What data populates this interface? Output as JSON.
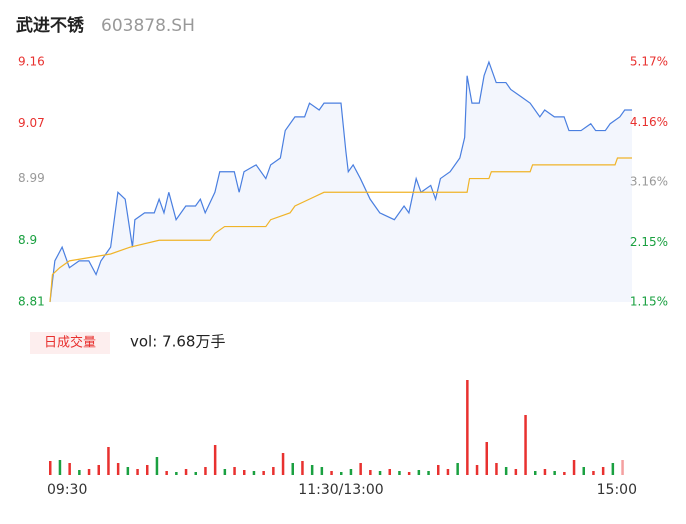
{
  "chart_data": [
    {
      "type": "line",
      "title": "武进不锈",
      "subtitle": "603878.SH",
      "xlim": [
        0,
        240
      ],
      "ylim": [
        8.81,
        9.16
      ],
      "yticks": [
        8.81,
        8.9,
        8.99,
        9.07,
        9.16
      ],
      "y2lim": [
        1.15,
        5.17
      ],
      "y2ticks": [
        {
          "value": 1.15,
          "label": "1.15%"
        },
        {
          "value": 2.15,
          "label": "2.15%"
        },
        {
          "value": 3.16,
          "label": "3.16%"
        },
        {
          "value": 4.16,
          "label": "4.16%"
        },
        {
          "value": 5.17,
          "label": "5.17%"
        }
      ],
      "series": [
        {
          "color": "#4a7fe0",
          "fill": "#f3f6fd",
          "x": [
            0,
            2,
            5,
            8,
            12,
            16,
            19,
            21,
            25,
            28,
            31,
            34,
            35,
            39,
            43,
            45,
            47,
            49,
            52,
            56,
            60,
            62,
            64,
            68,
            70,
            76,
            78,
            80,
            85,
            89,
            91,
            95,
            97,
            101,
            105,
            107,
            111,
            113,
            120,
            122,
            123,
            125,
            128,
            132,
            136,
            142,
            146,
            148,
            151,
            153,
            157,
            159,
            161,
            165,
            169,
            171,
            172,
            174,
            177,
            179,
            181,
            184,
            188,
            190,
            194,
            198,
            202,
            204,
            208,
            212,
            214,
            219,
            223,
            225,
            229,
            231,
            235,
            237,
            240
          ],
          "values": [
            8.81,
            8.87,
            8.89,
            8.86,
            8.87,
            8.87,
            8.85,
            8.87,
            8.89,
            8.97,
            8.96,
            8.89,
            8.93,
            8.94,
            8.94,
            8.96,
            8.94,
            8.97,
            8.93,
            8.95,
            8.95,
            8.96,
            8.94,
            8.97,
            9.0,
            9.0,
            8.97,
            9.0,
            9.01,
            8.99,
            9.01,
            9.02,
            9.06,
            9.08,
            9.08,
            9.1,
            9.09,
            9.1,
            9.1,
            9.03,
            9.0,
            9.01,
            8.99,
            8.96,
            8.94,
            8.93,
            8.95,
            8.94,
            8.99,
            8.97,
            8.98,
            8.96,
            8.99,
            9.0,
            9.02,
            9.05,
            9.14,
            9.1,
            9.1,
            9.14,
            9.16,
            9.13,
            9.13,
            9.12,
            9.11,
            9.1,
            9.08,
            9.09,
            9.08,
            9.08,
            9.06,
            9.06,
            9.07,
            9.06,
            9.06,
            9.07,
            9.08,
            9.09,
            9.09
          ]
        },
        {
          "color": "#f0b429",
          "x": [
            0,
            1,
            4,
            8,
            25,
            33,
            45,
            66,
            68,
            72,
            89,
            91,
            99,
            101,
            107,
            113,
            115,
            172,
            173,
            181,
            182,
            198,
            199,
            233,
            234,
            240
          ],
          "values": [
            8.81,
            8.85,
            8.86,
            8.87,
            8.88,
            8.89,
            8.9,
            8.9,
            8.91,
            8.92,
            8.92,
            8.93,
            8.94,
            8.95,
            8.96,
            8.97,
            8.97,
            8.97,
            8.99,
            8.99,
            9.0,
            9.0,
            9.01,
            9.01,
            9.02,
            9.02
          ]
        }
      ]
    },
    {
      "type": "bar",
      "title": "日成交量",
      "annotation": "vol: 7.68万手",
      "xlim": [
        0,
        240
      ],
      "xticks": [
        {
          "value": 0,
          "label": "09:30"
        },
        {
          "value": 120,
          "label": "11:30/13:00"
        },
        {
          "value": 240,
          "label": "15:00"
        }
      ],
      "x": [
        0,
        4,
        8,
        12,
        16,
        20,
        24,
        28,
        32,
        36,
        40,
        44,
        48,
        52,
        56,
        60,
        64,
        68,
        72,
        76,
        80,
        84,
        88,
        92,
        96,
        100,
        104,
        108,
        112,
        116,
        120,
        124,
        128,
        132,
        136,
        140,
        144,
        148,
        152,
        156,
        160,
        164,
        168,
        172,
        176,
        180,
        184,
        188,
        192,
        196,
        200,
        204,
        208,
        212,
        216,
        220,
        224,
        228,
        232,
        236
      ],
      "values": [
        14,
        15,
        12,
        5,
        6,
        10,
        28,
        12,
        8,
        6,
        10,
        18,
        4,
        3,
        6,
        3,
        8,
        30,
        6,
        8,
        5,
        4,
        4,
        8,
        22,
        12,
        14,
        10,
        8,
        4,
        3,
        6,
        12,
        5,
        4,
        6,
        4,
        3,
        5,
        4,
        10,
        6,
        12,
        95,
        10,
        33,
        12,
        8,
        6,
        60,
        4,
        6,
        4,
        3,
        15,
        8,
        4,
        8,
        12,
        15
      ],
      "colors": [
        "#e8312f",
        "#1aa040",
        "#e8312f",
        "#1aa040",
        "#e8312f",
        "#e8312f",
        "#e8312f",
        "#e8312f",
        "#1aa040",
        "#e8312f",
        "#e8312f",
        "#1aa040",
        "#e8312f",
        "#1aa040",
        "#e8312f",
        "#1aa040",
        "#e8312f",
        "#e8312f",
        "#1aa040",
        "#e8312f",
        "#e8312f",
        "#1aa040",
        "#e8312f",
        "#e8312f",
        "#e8312f",
        "#1aa040",
        "#e8312f",
        "#1aa040",
        "#1aa040",
        "#e8312f",
        "#1aa040",
        "#1aa040",
        "#e8312f",
        "#e8312f",
        "#1aa040",
        "#e8312f",
        "#1aa040",
        "#e8312f",
        "#1aa040",
        "#1aa040",
        "#e8312f",
        "#e8312f",
        "#1aa040",
        "#e8312f",
        "#e8312f",
        "#e8312f",
        "#e8312f",
        "#1aa040",
        "#e8312f",
        "#e8312f",
        "#1aa040",
        "#e8312f",
        "#1aa040",
        "#e8312f",
        "#e8312f",
        "#1aa040",
        "#e8312f",
        "#e8312f",
        "#1aa040",
        "#f4a0a0"
      ]
    }
  ]
}
